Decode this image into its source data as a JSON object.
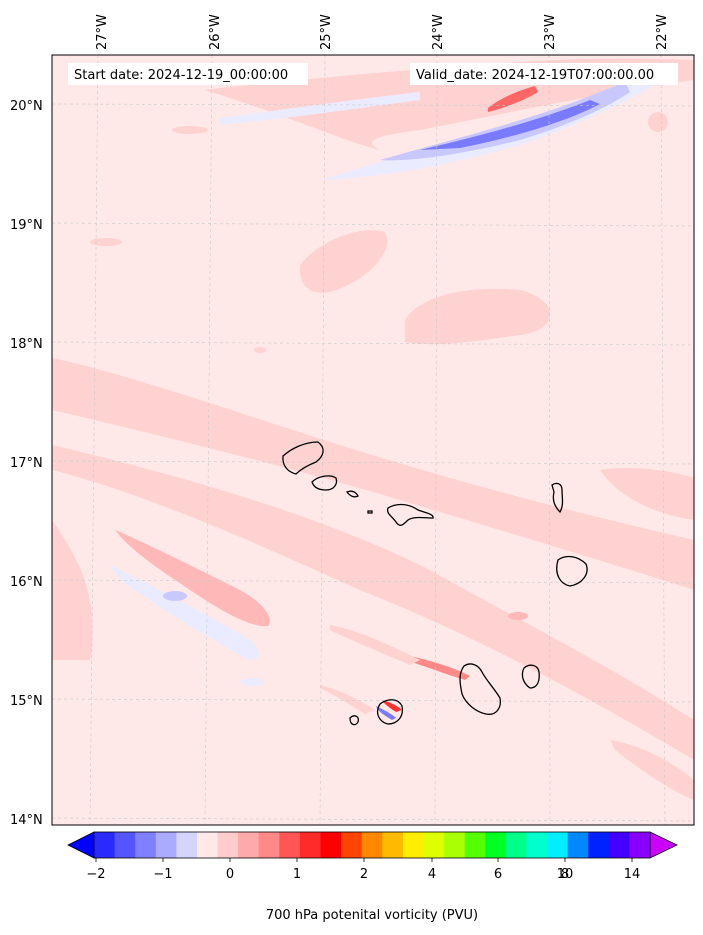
{
  "header": {
    "start_date": "Start date: 2024-12-19_00:00:00",
    "valid_date": "Valid_date: 2024-12-19T07:00:00.00"
  },
  "axes": {
    "lon_labels": [
      "27°W",
      "26°W",
      "25°W",
      "24°W",
      "23°W",
      "22°W"
    ],
    "lat_labels": [
      "20°N",
      "19°N",
      "18°N",
      "17°N",
      "16°N",
      "15°N",
      "14°N"
    ]
  },
  "colorbar": {
    "label": "700 hPa potenital vorticity (PVU)",
    "tick_labels": [
      "−2",
      "−1",
      "0",
      "1",
      "2",
      "4",
      "6",
      "8",
      "10",
      "14"
    ],
    "colors": [
      "#0000ff",
      "#2a2aff",
      "#5555ff",
      "#7f7fff",
      "#aaaaff",
      "#d4d4ff",
      "#ffe8e8",
      "#ffcccc",
      "#ffaaaa",
      "#ff8888",
      "#ff5555",
      "#ff2a2a",
      "#ff0000",
      "#ff4400",
      "#ff8800",
      "#ffbb00",
      "#ffee00",
      "#ddff00",
      "#aaff00",
      "#55ff00",
      "#00ff22",
      "#00ff88",
      "#00ffcc",
      "#00eeff",
      "#0088ff",
      "#0022ff",
      "#4400ff",
      "#8800ff",
      "#cc00ff"
    ]
  },
  "map": {
    "background_color": "#ffe8e8",
    "colors": {
      "light_pink": "#ffd2d2",
      "medium_pink": "#ffb8b8",
      "red": "#ff3333",
      "pale_blue": "#ebebff",
      "light_blue": "#c8c8ff",
      "blue": "#7a7aff"
    }
  }
}
